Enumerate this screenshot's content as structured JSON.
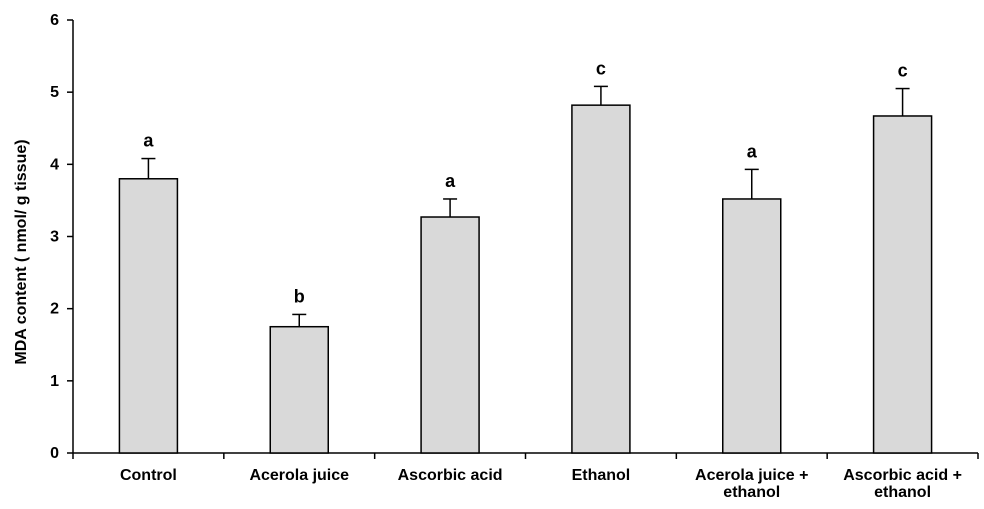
{
  "chart_data": {
    "type": "bar",
    "ylabel": "MDA content ( nmol/ g tissue)",
    "xlabel": "",
    "ylim": [
      0,
      6
    ],
    "yticks": [
      "0",
      "1",
      "2",
      "3",
      "4",
      "5",
      "6"
    ],
    "grid": false,
    "categories": [
      [
        "Control"
      ],
      [
        "Acerola juice"
      ],
      [
        "Ascorbic acid"
      ],
      [
        "Ethanol"
      ],
      [
        "Acerola juice +",
        "ethanol"
      ],
      [
        "Ascorbic acid +",
        "ethanol"
      ]
    ],
    "values": [
      3.8,
      1.75,
      3.27,
      4.82,
      3.52,
      4.67
    ],
    "errors": [
      0.28,
      0.17,
      0.25,
      0.26,
      0.41,
      0.38
    ],
    "significance_letters": [
      "a",
      "b",
      "a",
      "c",
      "a",
      "c"
    ],
    "bar_color": "#d9d9d9",
    "bar_edge_color": "#000000"
  }
}
